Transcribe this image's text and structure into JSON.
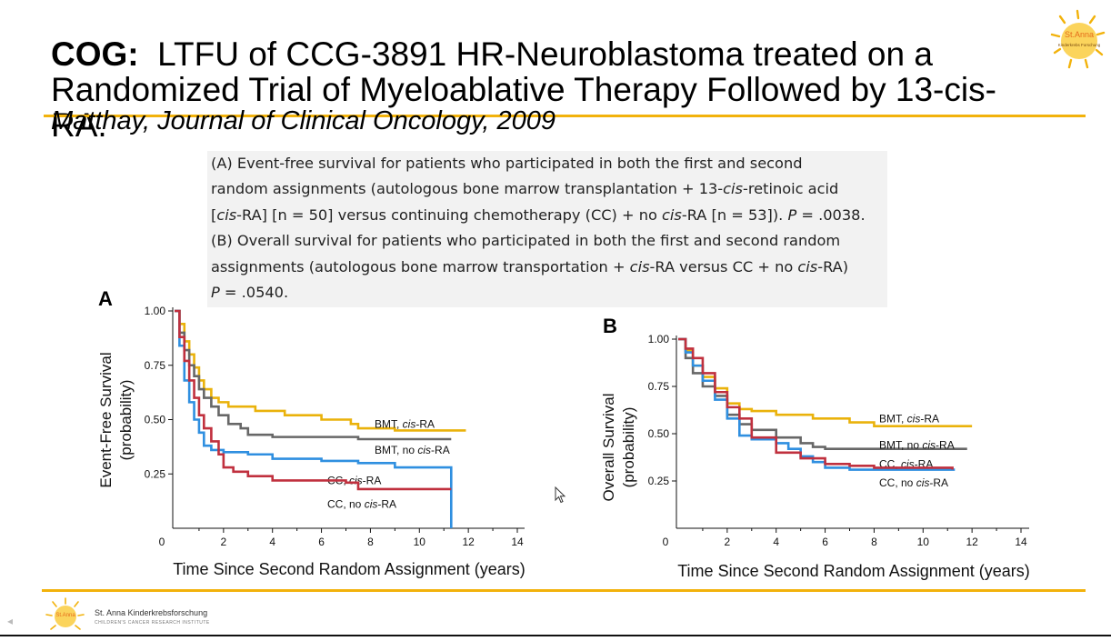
{
  "slide": {
    "title_bold": "COG:",
    "title_line1": "LTFU of CCG-3891 HR-Neuroblastoma treated on a",
    "title_line2": "Randomized Trial of Myeloablative Therapy Followed by 13-cis-RA.",
    "subtitle": "Matthay, Journal of Clinical Oncology, 2009",
    "caption": {
      "a1": "(A) Event-free survival for patients who participated in both the first and second",
      "a2_pre": "random assignments (autologous bone marrow transplantation + 13-",
      "a2_cis": "cis",
      "a2_post": "-retinoic acid",
      "a3_open": "[",
      "a3_cis1": "cis",
      "a3_mid": "-RA] [n = 50] versus continuing chemotherapy (CC) + no ",
      "a3_cis2": "cis",
      "a3_end": "-RA [n = 53]). ",
      "a3_p": "P",
      "a3_pval": " = .0038.",
      "b1": "(B) Overall survival for patients who participated in both the first and second random",
      "b2_pre": "assignments (autologous bone marrow transportation + ",
      "b2_cis1": "cis",
      "b2_mid": "-RA versus CC + no ",
      "b2_cis2": "cis",
      "b2_end": "-RA)",
      "b3_p": "P",
      "b3_pval": " = .0540."
    },
    "footer": {
      "org": "St. Anna Kinderkrebsforschung",
      "org_sub": "CHILDREN'S CANCER RESEARCH INSTITUTE",
      "logo_top_text": "St.Anna",
      "logo_top_sub": "Kinderkrebs Forschung",
      "logo_bottom_text": "St.Anna"
    },
    "colors": {
      "accent": "#f2b20b",
      "bmt_cisra": "#eab20b",
      "bmt_no_cisra": "#676767",
      "cc_cisra": "#2f8fe0",
      "cc_no_cisra": "#c0303e"
    }
  },
  "chart_data": [
    {
      "panel": "A",
      "type": "line",
      "xlabel": "Time Since Second Random Assignment (years)",
      "ylabel_line1": "Event-Free Survival",
      "ylabel_line2": "(probability)",
      "xlim": [
        0,
        14
      ],
      "ylim": [
        0,
        1
      ],
      "xticks": [
        "0",
        "2",
        "4",
        "6",
        "8",
        "10",
        "12",
        "14"
      ],
      "yticks": [
        {
          "v": 0.25,
          "label": "0.25"
        },
        {
          "v": 0.5,
          "label": "0.50"
        },
        {
          "v": 0.75,
          "label": "0.75"
        },
        {
          "v": 1.0,
          "label": "1.00"
        }
      ],
      "series": [
        {
          "key": "bmt_cisra",
          "label_pre": "BMT, ",
          "label_it": "cis",
          "label_post": "-RA",
          "points": [
            [
              0,
              1
            ],
            [
              0.2,
              0.94
            ],
            [
              0.4,
              0.86
            ],
            [
              0.6,
              0.8
            ],
            [
              0.8,
              0.74
            ],
            [
              1.0,
              0.68
            ],
            [
              1.2,
              0.64
            ],
            [
              1.5,
              0.6
            ],
            [
              1.8,
              0.58
            ],
            [
              2.2,
              0.56
            ],
            [
              3.0,
              0.56
            ],
            [
              3.3,
              0.54
            ],
            [
              4.5,
              0.52
            ],
            [
              6.0,
              0.5
            ],
            [
              7.2,
              0.48
            ],
            [
              7.5,
              0.46
            ],
            [
              9.0,
              0.45
            ],
            [
              11.9,
              0.45
            ]
          ],
          "label_y": 0.48
        },
        {
          "key": "bmt_no_cisra",
          "label_pre": "BMT, no ",
          "label_it": "cis",
          "label_post": "-RA",
          "points": [
            [
              0,
              1
            ],
            [
              0.2,
              0.9
            ],
            [
              0.4,
              0.82
            ],
            [
              0.6,
              0.75
            ],
            [
              0.8,
              0.7
            ],
            [
              1.0,
              0.64
            ],
            [
              1.2,
              0.6
            ],
            [
              1.5,
              0.56
            ],
            [
              1.8,
              0.52
            ],
            [
              2.2,
              0.48
            ],
            [
              2.7,
              0.46
            ],
            [
              3.0,
              0.43
            ],
            [
              4.0,
              0.42
            ],
            [
              6.0,
              0.42
            ],
            [
              7.5,
              0.41
            ],
            [
              11.3,
              0.41
            ]
          ],
          "label_y": 0.36
        },
        {
          "key": "cc_cisra",
          "label_pre": "CC, ",
          "label_it": "cis",
          "label_post": "-RA",
          "points": [
            [
              0,
              1
            ],
            [
              0.2,
              0.84
            ],
            [
              0.4,
              0.68
            ],
            [
              0.6,
              0.58
            ],
            [
              0.8,
              0.5
            ],
            [
              1.0,
              0.44
            ],
            [
              1.2,
              0.38
            ],
            [
              1.5,
              0.36
            ],
            [
              2.0,
              0.35
            ],
            [
              3.0,
              0.34
            ],
            [
              4.0,
              0.32
            ],
            [
              6.0,
              0.31
            ],
            [
              7.5,
              0.3
            ],
            [
              9.0,
              0.28
            ],
            [
              11.3,
              0.28
            ],
            [
              11.3,
              0.0
            ]
          ],
          "label_y": 0.22
        },
        {
          "key": "cc_no_cisra",
          "label_pre": "CC, no ",
          "label_it": "cis",
          "label_post": "-RA",
          "points": [
            [
              0,
              1
            ],
            [
              0.2,
              0.88
            ],
            [
              0.4,
              0.77
            ],
            [
              0.6,
              0.68
            ],
            [
              0.8,
              0.6
            ],
            [
              1.0,
              0.52
            ],
            [
              1.2,
              0.46
            ],
            [
              1.5,
              0.4
            ],
            [
              1.8,
              0.34
            ],
            [
              2.0,
              0.28
            ],
            [
              2.4,
              0.26
            ],
            [
              3.0,
              0.24
            ],
            [
              4.0,
              0.22
            ],
            [
              6.0,
              0.22
            ],
            [
              7.0,
              0.21
            ],
            [
              7.5,
              0.18
            ],
            [
              11.3,
              0.18
            ]
          ],
          "label_y": 0.11
        }
      ]
    },
    {
      "panel": "B",
      "type": "line",
      "xlabel": "Time Since Second Random Assignment (years)",
      "ylabel_line1": "Overall Survival",
      "ylabel_line2": "(probability)",
      "xlim": [
        0,
        14
      ],
      "ylim": [
        0,
        1
      ],
      "xticks": [
        "0",
        "2",
        "4",
        "6",
        "8",
        "10",
        "12",
        "14"
      ],
      "yticks": [
        {
          "v": 0.25,
          "label": "0.25"
        },
        {
          "v": 0.5,
          "label": "0.50"
        },
        {
          "v": 0.75,
          "label": "0.75"
        },
        {
          "v": 1.0,
          "label": "1.00"
        }
      ],
      "series": [
        {
          "key": "bmt_cisra",
          "label_pre": "BMT, ",
          "label_it": "cis",
          "label_post": "-RA",
          "points": [
            [
              0,
              1
            ],
            [
              0.3,
              0.94
            ],
            [
              0.6,
              0.86
            ],
            [
              1.0,
              0.8
            ],
            [
              1.5,
              0.74
            ],
            [
              2.0,
              0.66
            ],
            [
              2.5,
              0.63
            ],
            [
              3.0,
              0.62
            ],
            [
              4.0,
              0.6
            ],
            [
              5.5,
              0.58
            ],
            [
              7.0,
              0.56
            ],
            [
              8.0,
              0.54
            ],
            [
              12.0,
              0.54
            ]
          ],
          "label_y": 0.58
        },
        {
          "key": "bmt_no_cisra",
          "label_pre": "BMT, no ",
          "label_it": "cis",
          "label_post": "-RA",
          "points": [
            [
              0,
              1
            ],
            [
              0.3,
              0.9
            ],
            [
              0.6,
              0.82
            ],
            [
              1.0,
              0.75
            ],
            [
              1.5,
              0.7
            ],
            [
              2.0,
              0.6
            ],
            [
              2.5,
              0.55
            ],
            [
              3.0,
              0.52
            ],
            [
              4.0,
              0.48
            ],
            [
              5.0,
              0.45
            ],
            [
              5.5,
              0.43
            ],
            [
              6.0,
              0.42
            ],
            [
              11.8,
              0.42
            ]
          ],
          "label_y": 0.44
        },
        {
          "key": "cc_cisra",
          "label_pre": "CC, ",
          "label_it": "cis",
          "label_post": "-RA",
          "points": [
            [
              0,
              1
            ],
            [
              0.3,
              0.93
            ],
            [
              0.6,
              0.86
            ],
            [
              1.0,
              0.78
            ],
            [
              1.5,
              0.68
            ],
            [
              2.0,
              0.58
            ],
            [
              2.5,
              0.49
            ],
            [
              3.0,
              0.47
            ],
            [
              4.0,
              0.45
            ],
            [
              4.5,
              0.42
            ],
            [
              5.0,
              0.38
            ],
            [
              5.5,
              0.35
            ],
            [
              6.0,
              0.32
            ],
            [
              7.0,
              0.31
            ],
            [
              11.3,
              0.31
            ]
          ],
          "label_y": 0.34
        },
        {
          "key": "cc_no_cisra",
          "label_pre": "CC, no ",
          "label_it": "cis",
          "label_post": "-RA",
          "points": [
            [
              0,
              1
            ],
            [
              0.3,
              0.95
            ],
            [
              0.6,
              0.9
            ],
            [
              1.0,
              0.82
            ],
            [
              1.5,
              0.72
            ],
            [
              2.0,
              0.64
            ],
            [
              2.5,
              0.58
            ],
            [
              3.0,
              0.48
            ],
            [
              4.0,
              0.4
            ],
            [
              5.0,
              0.37
            ],
            [
              6.0,
              0.34
            ],
            [
              7.0,
              0.33
            ],
            [
              8.0,
              0.32
            ],
            [
              11.2,
              0.31
            ]
          ],
          "label_y": 0.24
        }
      ]
    }
  ]
}
